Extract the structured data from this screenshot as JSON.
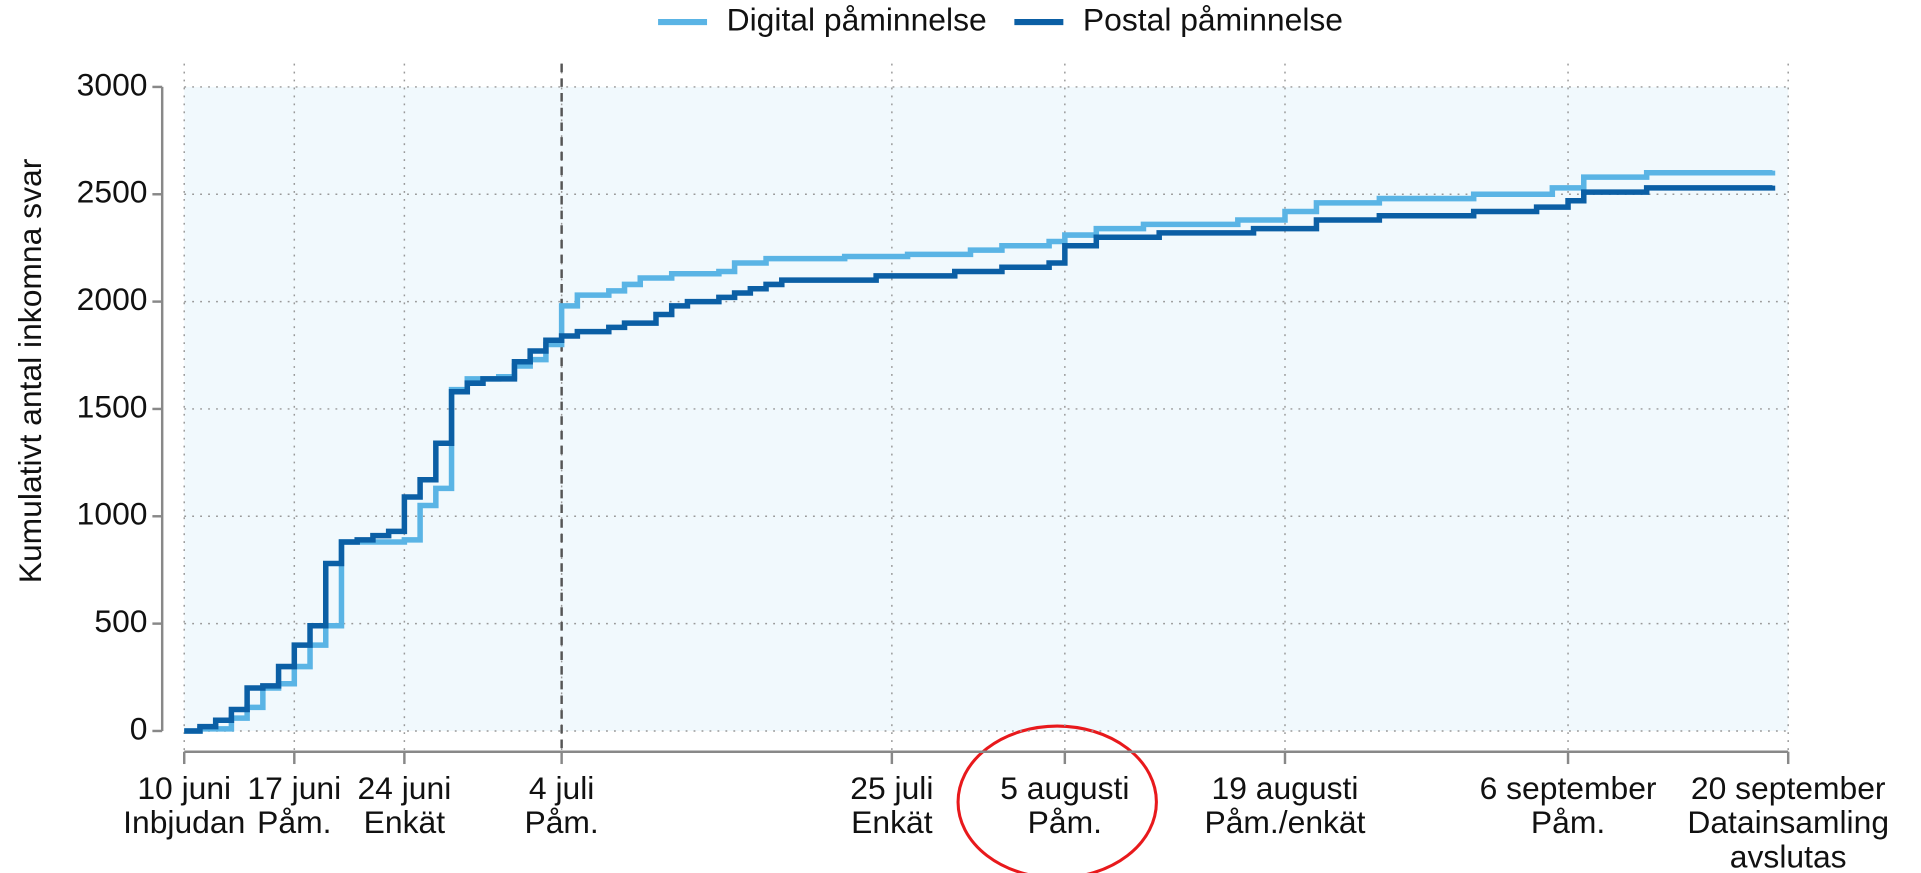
{
  "chart_data": {
    "type": "line",
    "step": "post",
    "y_label": "Kumulativt antal inkomna svar",
    "xlim": [
      0,
      102
    ],
    "ylim": [
      0,
      3000
    ],
    "yticks": [
      0,
      500,
      1000,
      1500,
      2000,
      2500,
      3000
    ],
    "xticks": [
      {
        "value": 0,
        "label": "10 juni\nInbjudan"
      },
      {
        "value": 7,
        "label": "17 juni\nPåm."
      },
      {
        "value": 14,
        "label": "24 juni\nEnkät"
      },
      {
        "value": 24,
        "label": "4 juli\nPåm."
      },
      {
        "value": 45,
        "label": "25 juli\nEnkät"
      },
      {
        "value": 56,
        "label": "5 augusti\nPåm."
      },
      {
        "value": 70,
        "label": "19 augusti\nPåm./enkät"
      },
      {
        "value": 88,
        "label": "6 september\nPåm."
      },
      {
        "value": 102,
        "label": "20 september\nDatainsamling\navslutas"
      }
    ],
    "grid": true,
    "vline": 24,
    "legend": "top",
    "series": [
      {
        "name": "Digital påminnelse",
        "color": "#5ab4e5",
        "x": [
          0,
          1,
          3,
          4,
          5,
          6,
          7,
          8,
          9,
          10,
          14,
          15,
          16,
          17,
          18,
          20,
          21,
          22,
          23,
          24,
          25,
          27,
          28,
          29,
          31,
          34,
          35,
          37,
          42,
          46,
          50,
          52,
          55,
          56,
          58,
          61,
          67,
          70,
          72,
          76,
          82,
          87,
          89,
          93,
          101
        ],
        "values": [
          0,
          10,
          60,
          110,
          200,
          220,
          300,
          400,
          490,
          880,
          890,
          1050,
          1130,
          1590,
          1640,
          1650,
          1700,
          1730,
          1800,
          1980,
          2030,
          2050,
          2080,
          2110,
          2130,
          2140,
          2180,
          2200,
          2210,
          2220,
          2240,
          2260,
          2280,
          2310,
          2340,
          2360,
          2380,
          2420,
          2460,
          2480,
          2500,
          2530,
          2580,
          2600,
          2610
        ]
      },
      {
        "name": "Postal påminnelse",
        "color": "#0b5fa5",
        "x": [
          0,
          1,
          2,
          3,
          4,
          5,
          6,
          7,
          8,
          9,
          10,
          11,
          12,
          13,
          14,
          15,
          16,
          17,
          18,
          19,
          21,
          22,
          23,
          24,
          25,
          27,
          28,
          30,
          31,
          32,
          34,
          35,
          36,
          37,
          38,
          44,
          49,
          52,
          55,
          56,
          58,
          62,
          68,
          72,
          76,
          82,
          86,
          88,
          89,
          93,
          101
        ],
        "values": [
          0,
          20,
          50,
          100,
          200,
          210,
          300,
          400,
          490,
          780,
          880,
          890,
          910,
          930,
          1090,
          1170,
          1340,
          1580,
          1620,
          1640,
          1720,
          1770,
          1820,
          1840,
          1860,
          1880,
          1900,
          1940,
          1980,
          2000,
          2020,
          2040,
          2060,
          2080,
          2100,
          2120,
          2140,
          2160,
          2180,
          2260,
          2300,
          2320,
          2340,
          2380,
          2400,
          2420,
          2440,
          2470,
          2510,
          2530,
          2540
        ]
      }
    ]
  }
}
